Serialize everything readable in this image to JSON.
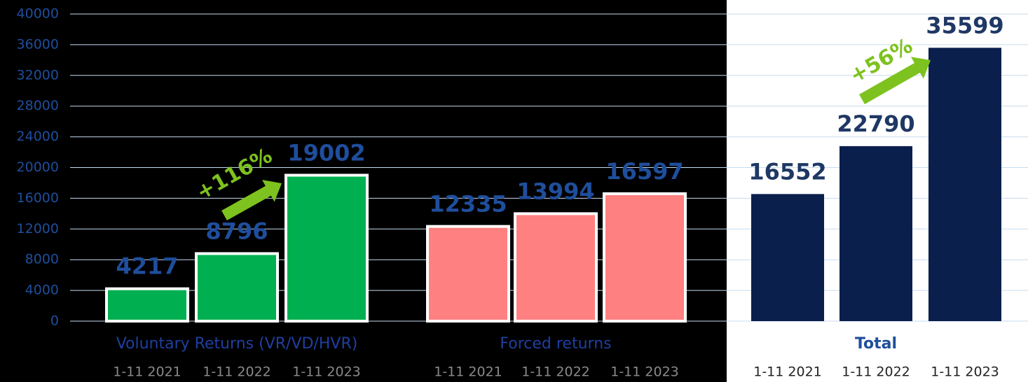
{
  "chart_data": {
    "type": "bar",
    "ylim": [
      0,
      40000
    ],
    "yticks": [
      0,
      4000,
      8000,
      12000,
      16000,
      20000,
      24000,
      28000,
      32000,
      36000,
      40000
    ],
    "grid": true,
    "groups": [
      {
        "name": "Voluntary Returns (VR/VD/HVR)",
        "color": "#00b050",
        "categories": [
          "1-11 2021",
          "1-11 2022",
          "1-11 2023"
        ],
        "values": [
          4217,
          8796,
          19002
        ]
      },
      {
        "name": "Forced returns",
        "color": "#ff8080",
        "categories": [
          "1-11 2021",
          "1-11 2022",
          "1-11 2023"
        ],
        "values": [
          12335,
          13994,
          16597
        ]
      },
      {
        "name": "Total",
        "color": "#0b1f4d",
        "categories": [
          "1-11 2021",
          "1-11 2022",
          "1-11 2023"
        ],
        "values": [
          16552,
          22790,
          35599
        ]
      }
    ],
    "annotations": [
      "+116%",
      "+56%"
    ]
  }
}
